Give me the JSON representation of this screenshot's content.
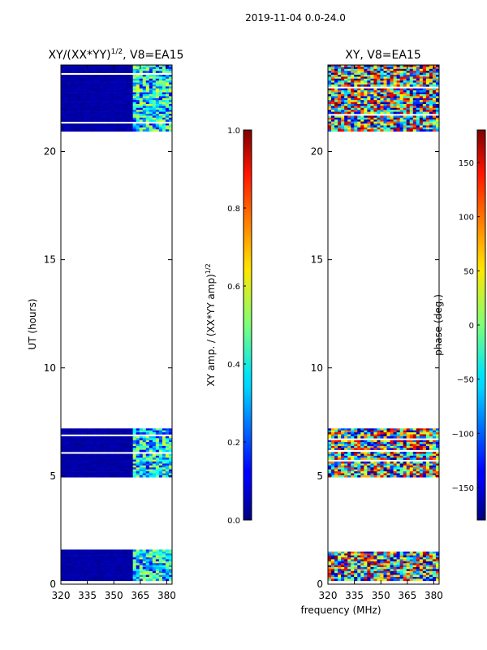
{
  "suptitle": "2019-11-04 0.0-24.0",
  "shared_xlabel": "frequency (MHz)",
  "chart_data": [
    {
      "type": "heatmap",
      "title_main": "XY/(XX*YY)",
      "title_exp": "1/2",
      "title_rest": ", V8=EA15",
      "xlabel": "",
      "ylabel": "UT (hours)",
      "xlim": [
        320,
        383
      ],
      "ylim": [
        0,
        24
      ],
      "xticks": [
        320,
        335,
        350,
        365,
        380
      ],
      "yticks": [
        0,
        5,
        10,
        15,
        20
      ],
      "data_blocks_ut_hours": [
        [
          0.2,
          1.6
        ],
        [
          5.0,
          7.2
        ],
        [
          21.0,
          24.0
        ]
      ],
      "bright_band_mhz": [
        360,
        383
      ],
      "colorbar": {
        "label_main": "XY amp. / (XX*YY amp)",
        "label_exp": "1/2",
        "range": [
          0.0,
          1.0
        ],
        "ticks": [
          "0.0",
          "0.2",
          "0.4",
          "0.6",
          "0.8",
          "1.0"
        ],
        "tick_values": [
          0.0,
          0.2,
          0.4,
          0.6,
          0.8,
          1.0
        ]
      }
    },
    {
      "type": "heatmap",
      "title": "XY, V8=EA15",
      "xlabel": "",
      "ylabel": "",
      "xlim": [
        320,
        383
      ],
      "ylim": [
        0,
        24
      ],
      "xticks": [
        320,
        335,
        350,
        365,
        380
      ],
      "yticks": [
        0,
        5,
        10,
        15,
        20
      ],
      "data_blocks_ut_hours": [
        [
          0.2,
          1.6
        ],
        [
          5.0,
          7.2
        ],
        [
          21.0,
          24.0
        ]
      ],
      "colorbar": {
        "label": "phase (deg.)",
        "range": [
          -180,
          180
        ],
        "ticks": [
          "−150",
          "−100",
          "−50",
          "0",
          "50",
          "100",
          "150"
        ],
        "tick_values": [
          -150,
          -100,
          -50,
          0,
          50,
          100,
          150
        ]
      }
    }
  ]
}
